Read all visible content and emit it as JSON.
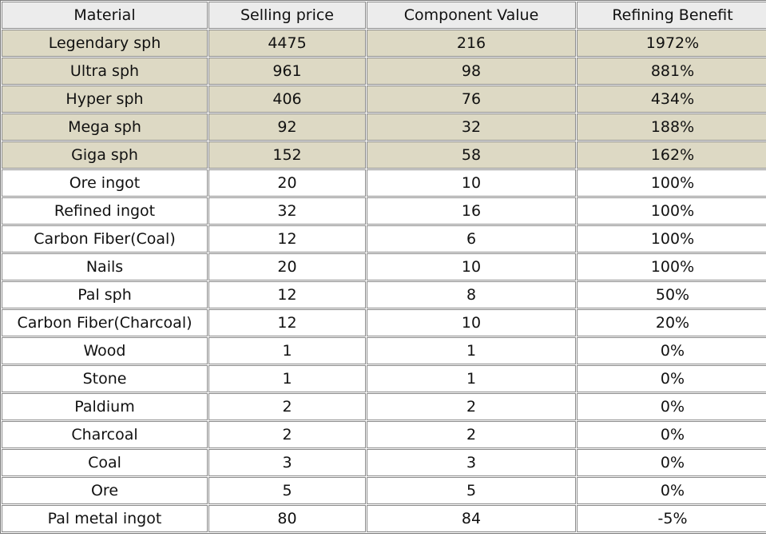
{
  "table": {
    "header": [
      "Material",
      "Selling price",
      "Component Value",
      "Refining Benefit"
    ],
    "rows": [
      [
        "Legendary sph",
        "4475",
        "216",
        "1972%"
      ],
      [
        "Ultra sph",
        "961",
        "98",
        "881%"
      ],
      [
        "Hyper sph",
        "406",
        "76",
        "434%"
      ],
      [
        "Mega sph",
        "92",
        "32",
        "188%"
      ],
      [
        "Giga sph",
        "152",
        "58",
        "162%"
      ],
      [
        "Ore ingot",
        "20",
        "10",
        "100%"
      ],
      [
        "Refined ingot",
        "32",
        "16",
        "100%"
      ],
      [
        "Carbon Fiber(Coal)",
        "12",
        "6",
        "100%"
      ],
      [
        "Nails",
        "20",
        "10",
        "100%"
      ],
      [
        "Pal sph",
        "12",
        "8",
        "50%"
      ],
      [
        "Carbon Fiber(Charcoal)",
        "12",
        "10",
        "20%"
      ],
      [
        "Wood",
        "1",
        "1",
        "0%"
      ],
      [
        "Stone",
        "1",
        "1",
        "0%"
      ],
      [
        "Paldium",
        "2",
        "2",
        "0%"
      ],
      [
        "Charcoal",
        "2",
        "2",
        "0%"
      ],
      [
        "Coal",
        "3",
        "3",
        "0%"
      ],
      [
        "Ore",
        "5",
        "5",
        "0%"
      ],
      [
        "Pal metal ingot",
        "80",
        "84",
        "-5%"
      ]
    ]
  }
}
